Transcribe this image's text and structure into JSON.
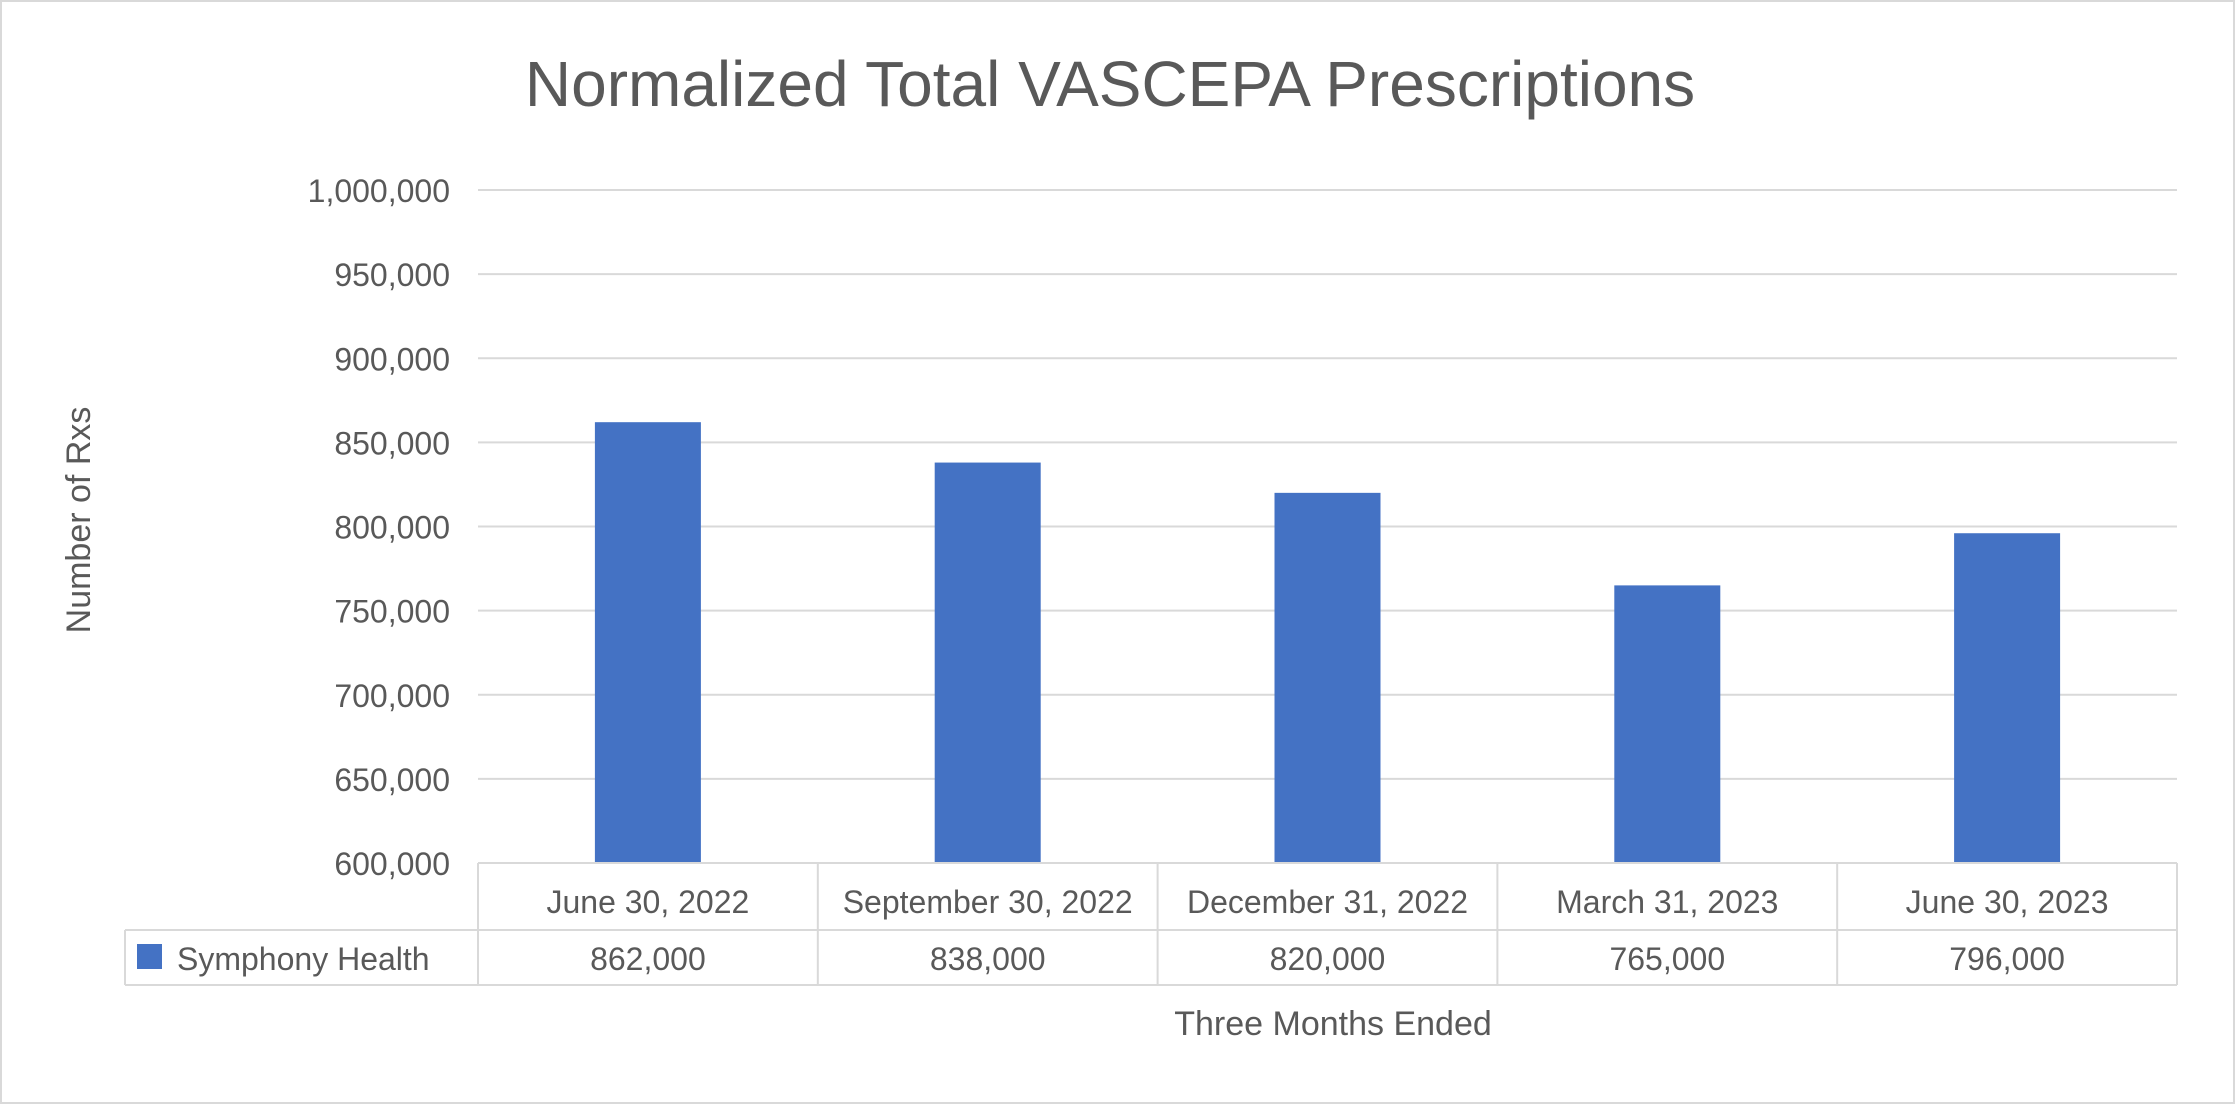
{
  "chart_data": {
    "type": "bar",
    "title": "Normalized Total VASCEPA Prescriptions",
    "xlabel": "Three Months Ended",
    "ylabel": "Number of Rxs",
    "categories": [
      "June 30, 2022",
      "September 30, 2022",
      "December 31, 2022",
      "March 31, 2023",
      "June 30, 2023"
    ],
    "series": [
      {
        "name": "Symphony Health",
        "values": [
          862000,
          838000,
          820000,
          765000,
          796000
        ],
        "value_labels": [
          "862,000",
          "838,000",
          "820,000",
          "765,000",
          "796,000"
        ],
        "color": "#4472C4"
      }
    ],
    "ylim": [
      600000,
      1000000
    ],
    "yticks": [
      600000,
      650000,
      700000,
      750000,
      800000,
      850000,
      900000,
      950000,
      1000000
    ],
    "ytick_labels": [
      "600,000",
      "650,000",
      "700,000",
      "750,000",
      "800,000",
      "850,000",
      "900,000",
      "950,000",
      "1,000,000"
    ],
    "grid": true,
    "legend": "data-table-row",
    "colors": {
      "gridline": "#d9d9d9",
      "text": "#595959",
      "title": "#595959",
      "border": "#d9d9d9"
    }
  }
}
